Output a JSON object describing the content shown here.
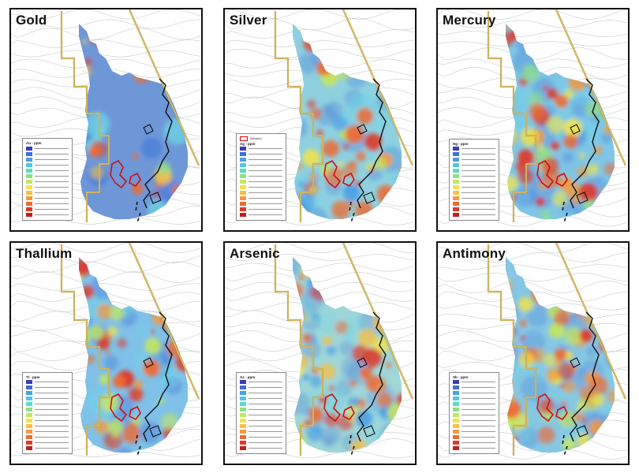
{
  "panels": [
    {
      "title": "Gold",
      "legend_title": "Au - ppm",
      "palette": "gold"
    },
    {
      "title": "Silver",
      "legend_title": "Ag - ppm",
      "palette": "silver",
      "legend_extra": "Alteration"
    },
    {
      "title": "Mercury",
      "legend_title": "Hg - ppm",
      "palette": "mercury"
    },
    {
      "title": "Thallium",
      "legend_title": "Tl - ppm",
      "palette": "thallium"
    },
    {
      "title": "Arsenic",
      "legend_title": "As - ppm",
      "palette": "arsenic"
    },
    {
      "title": "Antimony",
      "legend_title": "Sb - ppm",
      "palette": "antimony"
    }
  ],
  "legend_colors": [
    "#3b3bb8",
    "#3f6fd6",
    "#4aa0e6",
    "#4ec7e6",
    "#5fd9c3",
    "#8fe08a",
    "#c4e65f",
    "#efe34f",
    "#f7c045",
    "#f49a3c",
    "#ee6b33",
    "#dd3a2a",
    "#c41e1e"
  ],
  "colors": {
    "claim_border": "#b8962e",
    "outcrop_outline": "#cc1111",
    "trace_line": "#111111",
    "contours": "#bdbdbd"
  }
}
